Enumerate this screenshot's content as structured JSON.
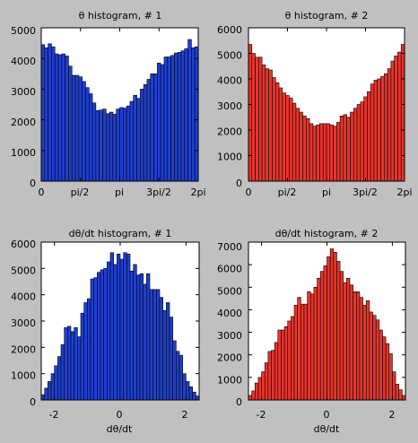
{
  "chart_data": [
    {
      "type": "bar",
      "title": "θ histogram, # 1",
      "xlabel": "",
      "ylabel": "",
      "xlim": [
        0,
        6.2832
      ],
      "ylim": [
        0,
        5000
      ],
      "x_ticks": [
        "0",
        "pi/2",
        "pi",
        "3pi/2",
        "2pi"
      ],
      "y_ticks": [
        "0",
        "1000",
        "2000",
        "3000",
        "4000",
        "5000"
      ],
      "bar_color": "#1f3fd0",
      "values": [
        4450,
        4350,
        4480,
        4380,
        4150,
        4120,
        4150,
        4080,
        3750,
        3450,
        3450,
        3400,
        3250,
        3050,
        2850,
        2550,
        2300,
        2320,
        2350,
        2200,
        2250,
        2180,
        2350,
        2400,
        2380,
        2450,
        2600,
        2800,
        2700,
        3000,
        3150,
        3320,
        3500,
        3500,
        3850,
        3800,
        4050,
        4050,
        4100,
        4180,
        4200,
        4250,
        4320,
        4620,
        4350,
        4380
      ]
    },
    {
      "type": "bar",
      "title": "θ histogram, # 2",
      "xlabel": "",
      "ylabel": "",
      "xlim": [
        0,
        6.2832
      ],
      "ylim": [
        0,
        6000
      ],
      "x_ticks": [
        "0",
        "pi/2",
        "pi",
        "3pi/2",
        "2pi"
      ],
      "y_ticks": [
        "0",
        "1000",
        "2000",
        "3000",
        "4000",
        "5000",
        "6000"
      ],
      "bar_color": "#e8352c",
      "values": [
        5350,
        5000,
        4850,
        4850,
        4550,
        4400,
        4350,
        4050,
        3850,
        3650,
        3450,
        3350,
        3250,
        3050,
        2850,
        2700,
        2550,
        2450,
        2250,
        2150,
        2200,
        2250,
        2250,
        2250,
        2200,
        2150,
        2300,
        2550,
        2600,
        2500,
        2700,
        2850,
        3000,
        3100,
        3300,
        3500,
        3800,
        3950,
        4000,
        4100,
        4200,
        4400,
        4700,
        4900,
        5050,
        5350
      ]
    },
    {
      "type": "bar",
      "title": "dθ/dt histogram, # 1",
      "xlabel": "dθ/dt",
      "ylabel": "",
      "xlim": [
        -2.4,
        2.4
      ],
      "ylim": [
        0,
        6000
      ],
      "x_ticks": [
        "-2",
        "0",
        "2"
      ],
      "y_ticks": [
        "0",
        "1000",
        "2000",
        "3000",
        "4000",
        "5000",
        "6000"
      ],
      "bar_color": "#1f3fd0",
      "values": [
        200,
        450,
        700,
        1000,
        1300,
        1650,
        2100,
        2750,
        2800,
        2600,
        2750,
        2400,
        3300,
        3700,
        3850,
        4600,
        4650,
        4850,
        4950,
        5000,
        5250,
        5600,
        5150,
        5550,
        5350,
        5600,
        5550,
        4900,
        5150,
        4750,
        4800,
        4400,
        4800,
        4200,
        4200,
        4200,
        3900,
        3400,
        3700,
        3150,
        2250,
        1850,
        1700,
        1000,
        700,
        500,
        300,
        150
      ]
    },
    {
      "type": "bar",
      "title": "dθ/dt histogram, # 2",
      "xlabel": "dθ/dt",
      "ylabel": "",
      "xlim": [
        -2.4,
        2.4
      ],
      "ylim": [
        0,
        7000
      ],
      "x_ticks": [
        "-2",
        "0",
        "2"
      ],
      "y_ticks": [
        "0",
        "1000",
        "2000",
        "3000",
        "4000",
        "5000",
        "6000",
        "7000"
      ],
      "bar_color": "#e8352c",
      "values": [
        200,
        400,
        750,
        1000,
        1250,
        1650,
        2150,
        2200,
        2550,
        3100,
        3100,
        3250,
        3500,
        3700,
        4200,
        4550,
        4250,
        4250,
        4800,
        4700,
        5000,
        5400,
        5700,
        5950,
        6350,
        6700,
        6550,
        6150,
        5700,
        5200,
        5400,
        5100,
        4800,
        4800,
        4550,
        4200,
        4400,
        3900,
        3750,
        3550,
        3100,
        2800,
        2500,
        2050,
        1250,
        700,
        450,
        200
      ]
    }
  ]
}
